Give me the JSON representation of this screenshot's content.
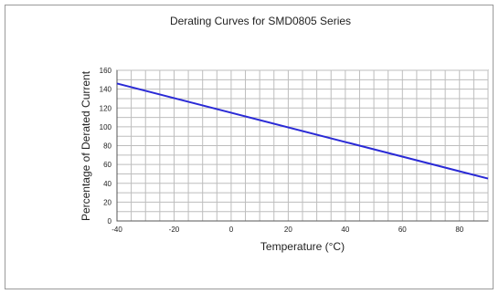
{
  "chart_data": {
    "type": "line",
    "title": "Derating Curves for SMD0805 Series",
    "xlabel": "Temperature (°C)",
    "ylabel": "Percentage of Derated Current",
    "xlim": [
      -40,
      90
    ],
    "ylim": [
      0,
      160
    ],
    "x_ticks": [
      -40,
      -20,
      0,
      20,
      40,
      60,
      80
    ],
    "y_ticks": [
      0,
      20,
      40,
      60,
      80,
      100,
      120,
      140,
      160
    ],
    "x_minor_step": 5,
    "y_minor_step": 10,
    "grid": true,
    "series": [
      {
        "x": [
          -40,
          90
        ],
        "y": [
          146,
          45
        ],
        "color": "#2a2ad6"
      }
    ],
    "colors": {
      "grid": "#bdbdbd",
      "axis": "#555555"
    }
  }
}
